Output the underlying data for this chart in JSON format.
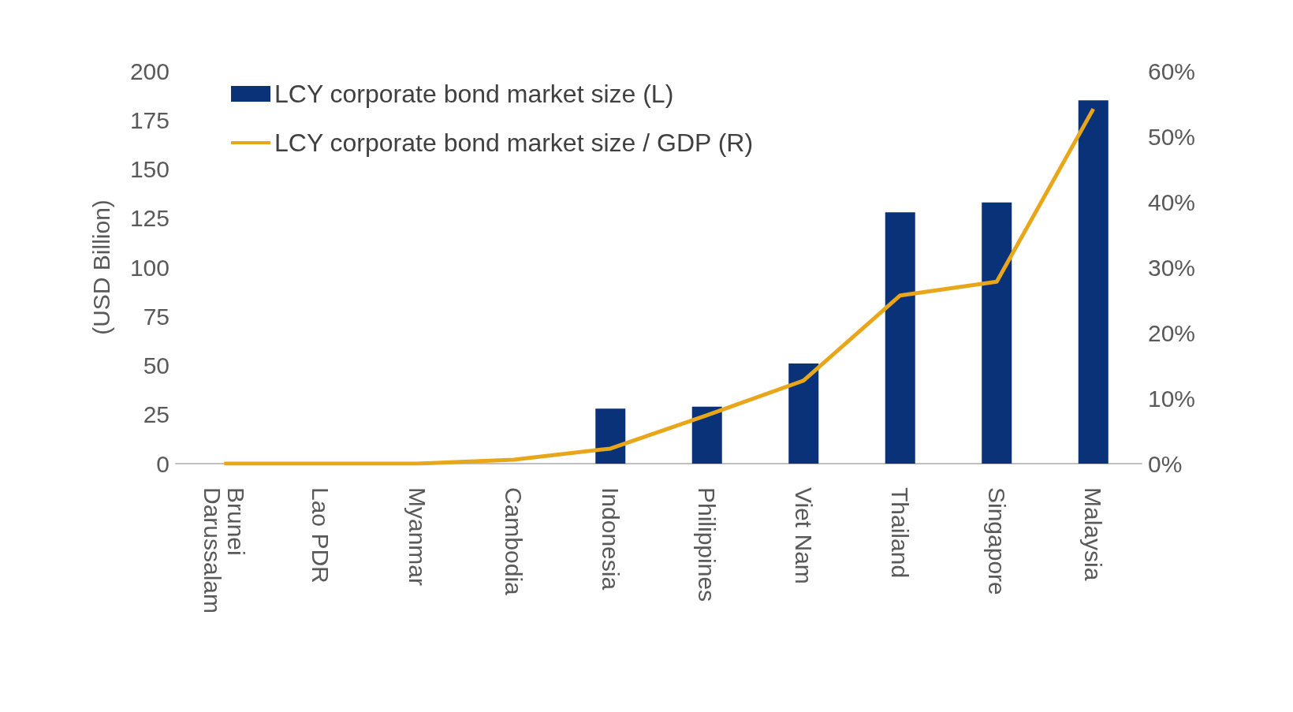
{
  "chart_data": {
    "type": "bar",
    "categories": [
      "Brunei Darussalam",
      "Lao PDR",
      "Myanmar",
      "Cambodia",
      "Indonesia",
      "Philippines",
      "Viet Nam",
      "Thailand",
      "Singapore",
      "Malaysia"
    ],
    "series": [
      {
        "name": "LCY corporate bond market size (L)",
        "color": "#0a3278",
        "values": [
          0,
          0,
          0,
          0,
          28,
          29,
          51,
          128,
          133,
          185
        ]
      },
      {
        "name": "LCY corporate bond market size / GDP (R)",
        "type": "line",
        "axis": "y2",
        "color": "#e8a61a",
        "values": [
          0,
          0,
          0,
          0.6,
          2.3,
          7.4,
          12.7,
          25.7,
          27.8,
          54.2
        ]
      }
    ],
    "ylabel": "(USD Billion)",
    "ylim": [
      0,
      200
    ],
    "yticks": [
      0,
      25,
      50,
      75,
      100,
      125,
      150,
      175,
      200
    ],
    "y2lim": [
      0,
      60
    ],
    "y2ticks": [
      {
        "value": 0,
        "label": "0%"
      },
      {
        "value": 10,
        "label": "10%"
      },
      {
        "value": 20,
        "label": "20%"
      },
      {
        "value": 30,
        "label": "30%"
      },
      {
        "value": 40,
        "label": "40%"
      },
      {
        "value": 50,
        "label": "50%"
      },
      {
        "value": 60,
        "label": "60%"
      }
    ],
    "legend": "top left",
    "grid": false,
    "marker": "none"
  }
}
